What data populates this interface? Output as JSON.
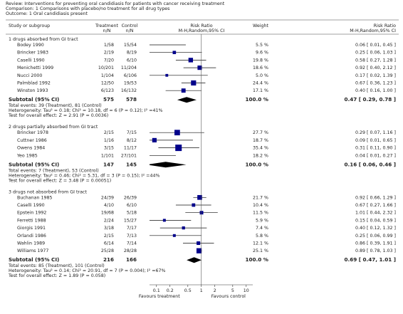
{
  "chart_data": {
    "type": "forest",
    "header": {
      "review": "Review:   Interventions for preventing oral candidiasis for patients with cancer receiving treatment",
      "comparison": "Comparison:   1 Comparisons with placebo/no treatment for all drug types",
      "outcome": "Outcome:   1 Oral candidiasis present"
    },
    "columns": {
      "study": "Study or subgroup",
      "treatment": "Treatment",
      "treatment_sub": "n/N",
      "control": "Control",
      "control_sub": "n/N",
      "effect": "Risk Ratio",
      "effect_sub": "M-H,Random,95% CI",
      "weight": "Weight",
      "ratio": "Risk Ratio",
      "ratio_sub": "M-H,Random,95% CI"
    },
    "groups": [
      {
        "title": "1 drugs absorbed from GI tract",
        "studies": [
          {
            "name": "Bodey 1990",
            "treatment": "1/58",
            "control": "15/54",
            "weight": 5.5,
            "weight_label": "5.5 %",
            "rr": 0.06,
            "lo": 0.01,
            "hi": 0.45,
            "rr_label": "0.06 [ 0.01, 0.45 ]"
          },
          {
            "name": "Brincker 1983",
            "treatment": "2/19",
            "control": "8/19",
            "weight": 9.6,
            "weight_label": "9.6 %",
            "rr": 0.25,
            "lo": 0.06,
            "hi": 1.03,
            "rr_label": "0.25 [ 0.06, 1.03 ]"
          },
          {
            "name": "Caselli 1990",
            "treatment": "7/20",
            "control": "6/10",
            "weight": 19.8,
            "weight_label": "19.8 %",
            "rr": 0.58,
            "lo": 0.27,
            "hi": 1.28,
            "rr_label": "0.58 [ 0.27, 1.28 ]"
          },
          {
            "name": "Menichetti 1999",
            "treatment": "10/201",
            "control": "11/204",
            "weight": 18.6,
            "weight_label": "18.6 %",
            "rr": 0.92,
            "lo": 0.4,
            "hi": 2.12,
            "rr_label": "0.92 [ 0.40, 2.12 ]"
          },
          {
            "name": "Nucci 2000",
            "treatment": "1/104",
            "control": "6/106",
            "weight": 5.0,
            "weight_label": "5.0 %",
            "rr": 0.17,
            "lo": 0.02,
            "hi": 1.39,
            "rr_label": "0.17 [ 0.02, 1.39 ]"
          },
          {
            "name": "Palmblad 1992",
            "treatment": "12/50",
            "control": "19/53",
            "weight": 24.4,
            "weight_label": "24.4 %",
            "rr": 0.67,
            "lo": 0.36,
            "hi": 1.23,
            "rr_label": "0.67 [ 0.36, 1.23 ]"
          },
          {
            "name": "Winston 1993",
            "treatment": "6/123",
            "control": "16/132",
            "weight": 17.1,
            "weight_label": "17.1 %",
            "rr": 0.4,
            "lo": 0.16,
            "hi": 1.0,
            "rr_label": "0.40 [ 0.16, 1.00 ]"
          }
        ],
        "subtotal": {
          "label": "Subtotal (95% CI)",
          "treatment": 575,
          "control": 578,
          "weight": 100,
          "weight_label": "100.0 %",
          "rr": 0.47,
          "lo": 0.29,
          "hi": 0.78,
          "rr_label": "0.47 [ 0.29, 0.78 ]"
        },
        "notes": [
          "Total events: 39 (Treatment), 81 (Control)",
          "Heterogeneity: Tau² = 0.18; Chi² = 10.18, df = 6 (P = 0.12); I² =41%",
          "Test for overall effect: Z = 2.91 (P = 0.0036)"
        ]
      },
      {
        "title": "2 drugs partially absorbed from GI tract",
        "studies": [
          {
            "name": "Brincker 1978",
            "treatment": "2/15",
            "control": "7/15",
            "weight": 27.7,
            "weight_label": "27.7 %",
            "rr": 0.29,
            "lo": 0.07,
            "hi": 1.16,
            "rr_label": "0.29 [ 0.07, 1.16 ]"
          },
          {
            "name": "Cuttner 1986",
            "treatment": "1/16",
            "control": "8/12",
            "weight": 18.7,
            "weight_label": "18.7 %",
            "rr": 0.09,
            "lo": 0.01,
            "hi": 0.65,
            "rr_label": "0.09 [ 0.01, 0.65 ]"
          },
          {
            "name": "Owens 1984",
            "treatment": "3/15",
            "control": "11/17",
            "weight": 35.4,
            "weight_label": "35.4 %",
            "rr": 0.31,
            "lo": 0.11,
            "hi": 0.9,
            "rr_label": "0.31 [ 0.11, 0.90 ]"
          },
          {
            "name": "Yeo 1985",
            "treatment": "1/101",
            "control": "27/101",
            "weight": 18.2,
            "weight_label": "18.2 %",
            "rr": 0.04,
            "lo": 0.01,
            "hi": 0.27,
            "rr_label": "0.04 [ 0.01, 0.27 ]"
          }
        ],
        "subtotal": {
          "label": "Subtotal (95% CI)",
          "treatment": 147,
          "control": 145,
          "weight": 100,
          "weight_label": "100.0 %",
          "rr": 0.16,
          "lo": 0.06,
          "hi": 0.46,
          "rr_label": "0.16 [ 0.06, 0.46 ]"
        },
        "notes": [
          "Total events: 7 (Treatment), 53 (Control)",
          "Heterogeneity: Tau² = 0.46; Chi² = 5.31, df = 3 (P = 0.15); I² =44%",
          "Test for overall effect: Z = 3.48 (P = 0.00051)"
        ]
      },
      {
        "title": "3 drugs not absorbed from GI tract",
        "studies": [
          {
            "name": "Buchanan 1985",
            "treatment": "24/39",
            "control": "26/39",
            "weight": 21.7,
            "weight_label": "21.7 %",
            "rr": 0.92,
            "lo": 0.66,
            "hi": 1.29,
            "rr_label": "0.92 [ 0.66, 1.29 ]"
          },
          {
            "name": "Caselli 1990",
            "treatment": "4/10",
            "control": "6/10",
            "weight": 10.4,
            "weight_label": "10.4 %",
            "rr": 0.67,
            "lo": 0.27,
            "hi": 1.66,
            "rr_label": "0.67 [ 0.27, 1.66 ]"
          },
          {
            "name": "Epstein 1992",
            "treatment": "19/68",
            "control": "5/18",
            "weight": 11.5,
            "weight_label": "11.5 %",
            "rr": 1.01,
            "lo": 0.44,
            "hi": 2.32,
            "rr_label": "1.01 [ 0.44, 2.32 ]"
          },
          {
            "name": "Ferretti 1988",
            "treatment": "2/24",
            "control": "15/27",
            "weight": 5.9,
            "weight_label": "5.9 %",
            "rr": 0.15,
            "lo": 0.04,
            "hi": 0.59,
            "rr_label": "0.15 [ 0.04, 0.59 ]"
          },
          {
            "name": "Giorgis 1991",
            "treatment": "3/18",
            "control": "7/17",
            "weight": 7.4,
            "weight_label": "7.4 %",
            "rr": 0.4,
            "lo": 0.12,
            "hi": 1.32,
            "rr_label": "0.40 [ 0.12, 1.32 ]"
          },
          {
            "name": "Orlandi 1986",
            "treatment": "2/15",
            "control": "7/13",
            "weight": 5.8,
            "weight_label": "5.8 %",
            "rr": 0.25,
            "lo": 0.06,
            "hi": 0.99,
            "rr_label": "0.25 [ 0.06, 0.99 ]"
          },
          {
            "name": "Wahlin 1989",
            "treatment": "6/14",
            "control": "7/14",
            "weight": 12.1,
            "weight_label": "12.1 %",
            "rr": 0.86,
            "lo": 0.39,
            "hi": 1.91,
            "rr_label": "0.86 [ 0.39, 1.91 ]"
          },
          {
            "name": "Williams 1977",
            "treatment": "25/28",
            "control": "28/28",
            "weight": 25.1,
            "weight_label": "25.1 %",
            "rr": 0.89,
            "lo": 0.78,
            "hi": 1.03,
            "rr_label": "0.89 [ 0.78, 1.03 ]"
          }
        ],
        "subtotal": {
          "label": "Subtotal (95% CI)",
          "treatment": 216,
          "control": 166,
          "weight": 100,
          "weight_label": "100.0 %",
          "rr": 0.69,
          "lo": 0.47,
          "hi": 1.01,
          "rr_label": "0.69 [ 0.47, 1.01 ]"
        },
        "notes": [
          "Total events: 85 (Treatment), 101 (Control)",
          "Heterogeneity: Tau² = 0.14; Chi² = 20.91, df = 7 (P = 0.004); I² =67%",
          "Test for overall effect: Z = 1.89 (P = 0.058)"
        ]
      }
    ],
    "xlim": [
      0.07,
      14
    ],
    "xticks": [
      0.1,
      0.2,
      0.5,
      1,
      2,
      5,
      10
    ],
    "log_x": true,
    "favours_left": "Favours treatment",
    "favours_right": "Favours control",
    "color": "#00008b"
  }
}
